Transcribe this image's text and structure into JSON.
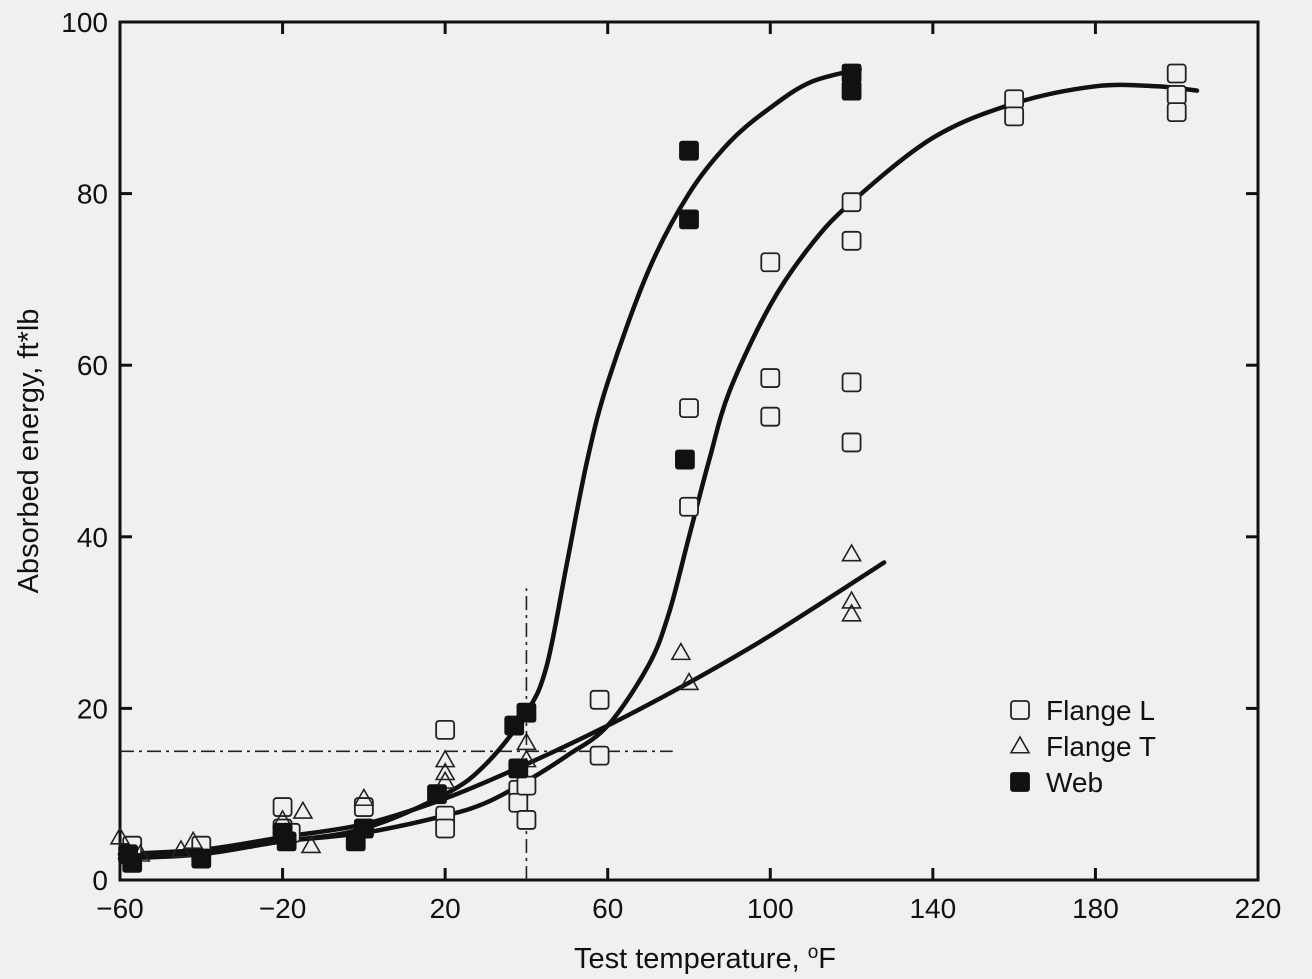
{
  "chart_data": {
    "type": "scatter",
    "xlabel": "Test temperature, ",
    "xlabel_unit": "F",
    "xlabel_unit_prefix": "o",
    "ylabel": "Absorbed energy, ft*lb",
    "xlim": [
      -60,
      220
    ],
    "ylim": [
      0,
      100
    ],
    "xticks": [
      -60,
      -20,
      20,
      60,
      100,
      140,
      180,
      220
    ],
    "xtick_labels": [
      "−60",
      "−20",
      "20",
      "60",
      "100",
      "140",
      "180",
      "220"
    ],
    "yticks": [
      0,
      20,
      40,
      60,
      80,
      100
    ],
    "ytick_labels": [
      "0",
      "20",
      "40",
      "60",
      "80",
      "100"
    ],
    "grid": false,
    "legend_position": "bottom-right",
    "series": [
      {
        "name": "Flange L",
        "marker": "open-square",
        "points": [
          [
            -57,
            4
          ],
          [
            -40,
            4
          ],
          [
            -20,
            8.5
          ],
          [
            -20,
            6
          ],
          [
            -18,
            5.5
          ],
          [
            0,
            8.5
          ],
          [
            0,
            6
          ],
          [
            20,
            17.5
          ],
          [
            20,
            7.5
          ],
          [
            20,
            6
          ],
          [
            38,
            10.5
          ],
          [
            38,
            9
          ],
          [
            40,
            7
          ],
          [
            40,
            11
          ],
          [
            58,
            21
          ],
          [
            58,
            14.5
          ],
          [
            80,
            55
          ],
          [
            80,
            43.5
          ],
          [
            100,
            72
          ],
          [
            100,
            58.5
          ],
          [
            100,
            54
          ],
          [
            120,
            79
          ],
          [
            120,
            74.5
          ],
          [
            120,
            58
          ],
          [
            120,
            51
          ],
          [
            160,
            91
          ],
          [
            160,
            89
          ],
          [
            200,
            94
          ],
          [
            200,
            91.5
          ],
          [
            200,
            89.5
          ]
        ]
      },
      {
        "name": "Flange T",
        "marker": "open-triangle",
        "points": [
          [
            -60,
            5
          ],
          [
            -55,
            3
          ],
          [
            -45,
            3.5
          ],
          [
            -42,
            4.5
          ],
          [
            -20,
            7
          ],
          [
            -15,
            8
          ],
          [
            -13,
            4
          ],
          [
            0,
            9.5
          ],
          [
            20,
            14
          ],
          [
            20,
            12.5
          ],
          [
            20,
            11.5
          ],
          [
            40,
            16
          ],
          [
            40,
            14
          ],
          [
            78,
            26.5
          ],
          [
            80,
            23
          ],
          [
            120,
            38
          ],
          [
            120,
            32.5
          ],
          [
            120,
            31
          ]
        ]
      },
      {
        "name": "Web",
        "marker": "filled-square",
        "points": [
          [
            -58,
            3
          ],
          [
            -57,
            2
          ],
          [
            -40,
            2.5
          ],
          [
            -20,
            5.5
          ],
          [
            -19,
            4.5
          ],
          [
            -2,
            4.5
          ],
          [
            0,
            6
          ],
          [
            18,
            10
          ],
          [
            37,
            18
          ],
          [
            38,
            13
          ],
          [
            40,
            19.5
          ],
          [
            80,
            85
          ],
          [
            80,
            77
          ],
          [
            79,
            49
          ],
          [
            120,
            94
          ],
          [
            120,
            92
          ]
        ]
      }
    ],
    "curves": [
      {
        "for": "Web",
        "points": [
          [
            -60,
            3
          ],
          [
            -40,
            3.5
          ],
          [
            -20,
            4.5
          ],
          [
            0,
            6
          ],
          [
            20,
            10
          ],
          [
            30,
            13.5
          ],
          [
            40,
            19.5
          ],
          [
            45,
            25
          ],
          [
            50,
            37
          ],
          [
            55,
            49
          ],
          [
            60,
            58
          ],
          [
            70,
            71
          ],
          [
            80,
            80
          ],
          [
            90,
            86
          ],
          [
            100,
            90
          ],
          [
            110,
            93
          ],
          [
            122,
            94.5
          ]
        ]
      },
      {
        "for": "Flange L",
        "points": [
          [
            -60,
            2.5
          ],
          [
            -40,
            3
          ],
          [
            -20,
            4.5
          ],
          [
            0,
            5.5
          ],
          [
            20,
            7.5
          ],
          [
            30,
            9
          ],
          [
            40,
            11.5
          ],
          [
            50,
            14.5
          ],
          [
            60,
            18
          ],
          [
            70,
            25
          ],
          [
            75,
            31
          ],
          [
            80,
            40
          ],
          [
            85,
            49
          ],
          [
            90,
            57
          ],
          [
            100,
            67
          ],
          [
            110,
            74
          ],
          [
            120,
            79
          ],
          [
            140,
            86.5
          ],
          [
            160,
            90.5
          ],
          [
            180,
            92.5
          ],
          [
            195,
            92.5
          ],
          [
            205,
            92
          ]
        ]
      },
      {
        "for": "Flange T",
        "points": [
          [
            -60,
            3
          ],
          [
            -40,
            3.5
          ],
          [
            -20,
            5
          ],
          [
            0,
            6.5
          ],
          [
            20,
            9.5
          ],
          [
            40,
            13.5
          ],
          [
            60,
            18
          ],
          [
            80,
            23
          ],
          [
            100,
            28.5
          ],
          [
            128,
            37
          ]
        ]
      }
    ],
    "reference_lines": [
      {
        "style": "dash-dot",
        "orientation": "horizontal",
        "y": 15,
        "x_from": -60,
        "x_to": 76
      },
      {
        "style": "dash-dot",
        "orientation": "vertical",
        "x": 40,
        "y_from": 0,
        "y_to": 34
      }
    ]
  }
}
